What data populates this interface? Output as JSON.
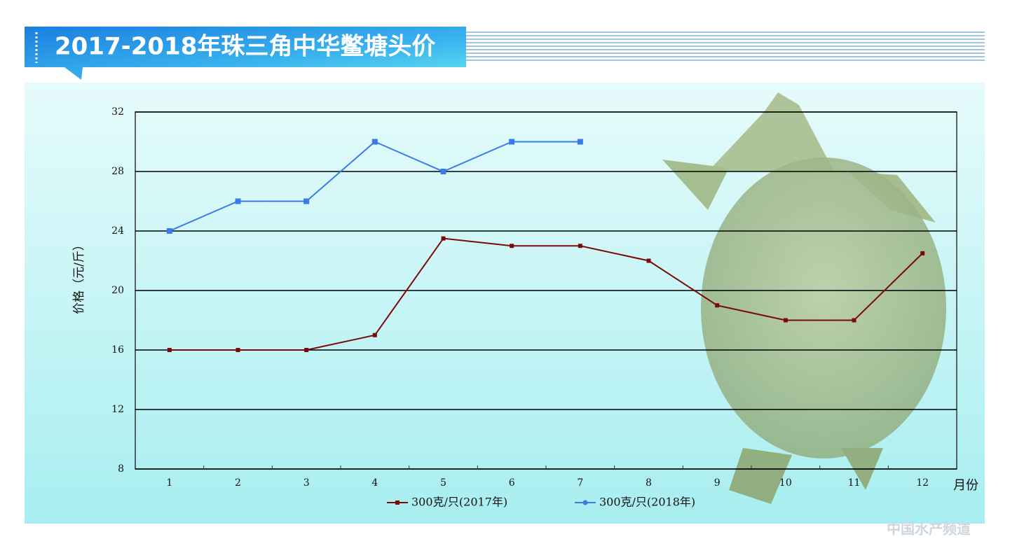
{
  "chart_data": {
    "type": "line",
    "title": "2017-2018年珠三角中华鳖塘头价",
    "y_label": "价格（元/斤）",
    "x_label": "月份",
    "categories": [
      "1",
      "2",
      "3",
      "4",
      "5",
      "6",
      "7",
      "8",
      "9",
      "10",
      "11",
      "12"
    ],
    "series": [
      {
        "name": "300克/只(2017年)",
        "color": "#7a0a0a",
        "values": [
          16,
          16,
          16,
          17,
          23.5,
          23,
          23,
          22,
          19,
          18,
          18,
          22.5
        ]
      },
      {
        "name": "300克/只(2018年)",
        "color": "#3b7be6",
        "values": [
          24,
          26,
          26,
          30,
          28,
          30,
          30,
          null,
          null,
          null,
          null,
          null
        ]
      }
    ],
    "ylim": [
      8,
      32
    ],
    "yticks": [
      8,
      12,
      16,
      20,
      24,
      28,
      32
    ],
    "grid": true,
    "watermark": "中国水产频道"
  }
}
